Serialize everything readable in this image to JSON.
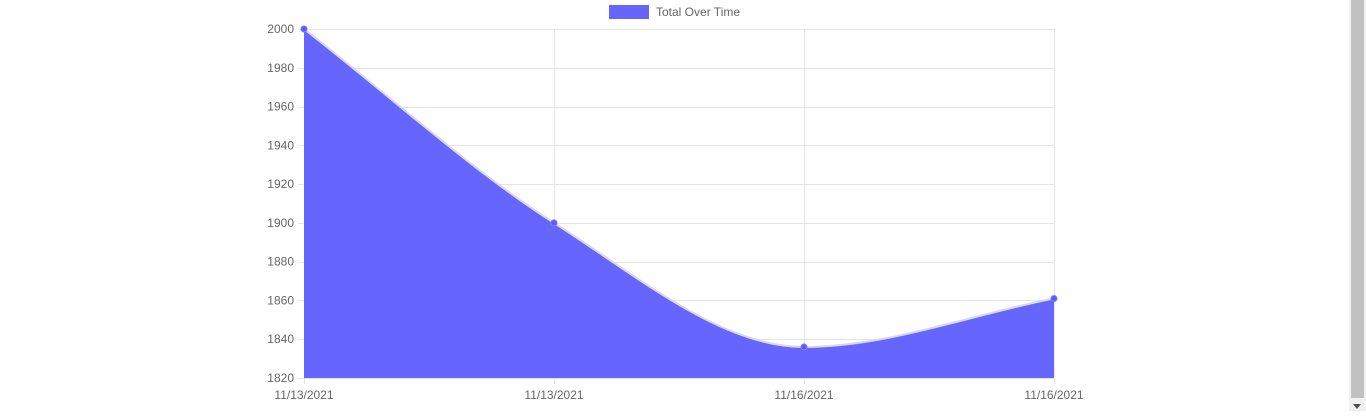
{
  "chart_data": {
    "type": "area",
    "title": "",
    "xlabel": "",
    "ylabel": "",
    "categories": [
      "11/13/2021",
      "11/13/2021",
      "11/16/2021",
      "11/16/2021"
    ],
    "series": [
      {
        "name": "Total Over Time",
        "values": [
          2000,
          1900,
          1836,
          1861
        ],
        "color": "#6666ff"
      }
    ],
    "ylim": [
      1820,
      2000
    ],
    "yticks": [
      2000,
      1980,
      1960,
      1940,
      1920,
      1900,
      1880,
      1860,
      1840,
      1820
    ],
    "grid": true,
    "legend_position": "top-center"
  },
  "colors": {
    "fill": "#6666ff",
    "point": "#5c5cf5",
    "grid": "#e5e5e5",
    "tick_text": "#666666"
  }
}
